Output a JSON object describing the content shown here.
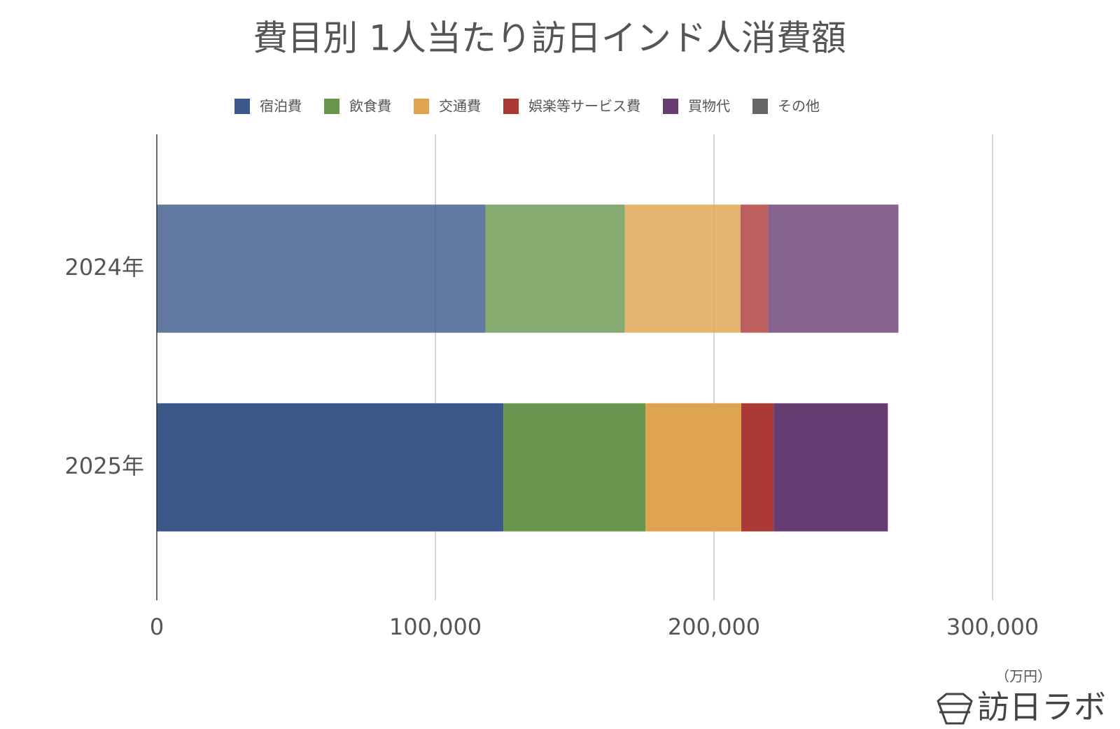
{
  "chart_data": {
    "type": "stacked-bar-horizontal",
    "title": "費目別 1人当たり訪日インド人消費額",
    "categories": [
      "2024年",
      "2025年"
    ],
    "series": [
      {
        "name": "宿泊費",
        "color": "#3a5888",
        "values": [
          118000,
          124400
        ]
      },
      {
        "name": "飲食費",
        "color": "#69964e",
        "values": [
          50000,
          51000
        ]
      },
      {
        "name": "交通費",
        "color": "#dfa44f",
        "values": [
          41500,
          34400
        ]
      },
      {
        "name": "娯楽等サービス費",
        "color": "#aa3835",
        "values": [
          10000,
          11600
        ]
      },
      {
        "name": "買物代",
        "color": "#673c72",
        "values": [
          46700,
          41000
        ]
      },
      {
        "name": "その他",
        "color": "#666666",
        "values": [
          0,
          0
        ]
      }
    ],
    "xlim": [
      0,
      330000
    ],
    "xticks": [
      0,
      {
        "value": 100000,
        "label": "100,000"
      },
      {
        "value": 200000,
        "label": "200,000"
      },
      {
        "value": 300000,
        "label": "300,000"
      }
    ],
    "unit_label": "（万円）",
    "grid": true,
    "legend": "top",
    "source": "訪日ラボ"
  }
}
